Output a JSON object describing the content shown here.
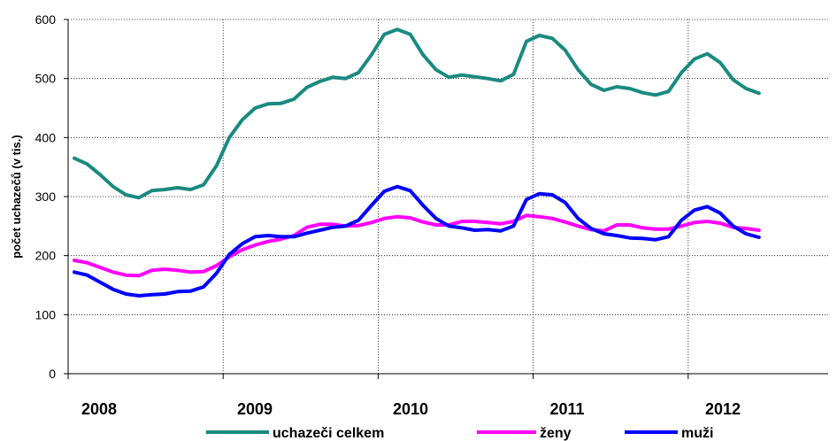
{
  "chart_data": {
    "type": "line",
    "ylabel": "počet uchazečů (v tis.)",
    "xlabel": "",
    "ylim": [
      0,
      600
    ],
    "yticks": [
      0,
      100,
      200,
      300,
      400,
      500,
      600
    ],
    "xticks": [
      "2008",
      "2009",
      "2010",
      "2011",
      "2012"
    ],
    "x_start": "2008-01",
    "grid": "dotted vertical and horizontal",
    "legend": "bottom",
    "series": [
      {
        "name": "uchazeči celkem",
        "color": "#1a8a80",
        "values": [
          365,
          355,
          337,
          317,
          303,
          298,
          310,
          312,
          315,
          312,
          320,
          352,
          400,
          430,
          450,
          457,
          458,
          465,
          485,
          495,
          502,
          500,
          510,
          540,
          575,
          583,
          575,
          540,
          515,
          502,
          506,
          503,
          500,
          496,
          507,
          563,
          573,
          568,
          548,
          515,
          490,
          480,
          486,
          483,
          476,
          472,
          478,
          510,
          533,
          542,
          527,
          498,
          483,
          475
        ]
      },
      {
        "name": "ženy",
        "color": "#ff00ff",
        "values": [
          192,
          188,
          180,
          172,
          167,
          166,
          175,
          177,
          175,
          172,
          173,
          183,
          198,
          210,
          218,
          224,
          228,
          234,
          248,
          253,
          253,
          250,
          251,
          256,
          263,
          266,
          264,
          257,
          252,
          252,
          258,
          258,
          256,
          254,
          258,
          268,
          266,
          263,
          257,
          250,
          244,
          242,
          252,
          252,
          247,
          245,
          245,
          250,
          256,
          258,
          255,
          248,
          246,
          243
        ]
      },
      {
        "name": "muži",
        "color": "#0000ff",
        "values": [
          172,
          167,
          155,
          143,
          135,
          132,
          134,
          135,
          139,
          140,
          147,
          170,
          202,
          220,
          232,
          234,
          232,
          232,
          238,
          243,
          248,
          250,
          260,
          285,
          309,
          317,
          310,
          285,
          263,
          250,
          247,
          243,
          244,
          242,
          250,
          295,
          305,
          303,
          290,
          263,
          246,
          237,
          234,
          230,
          229,
          227,
          232,
          260,
          277,
          283,
          272,
          250,
          237,
          231
        ]
      }
    ]
  }
}
